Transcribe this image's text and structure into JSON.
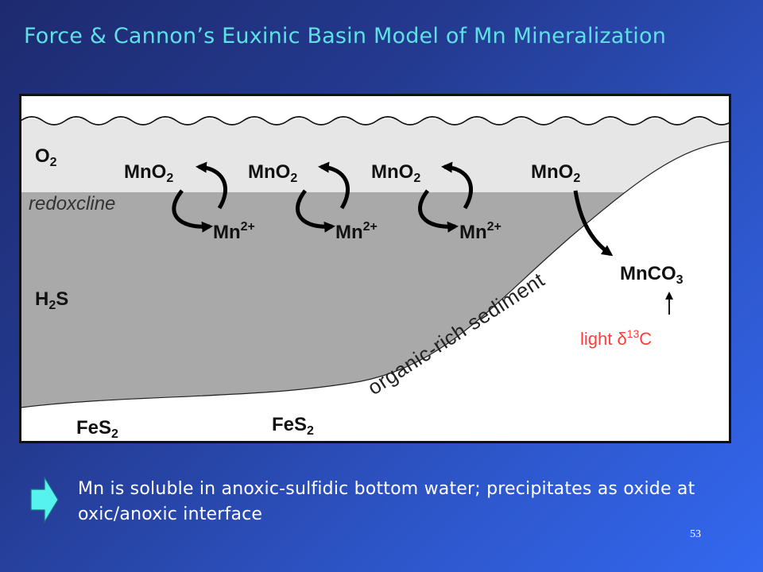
{
  "title": "Force & Cannon’s Euxinic Basin Model of Mn Mineralization",
  "diagram": {
    "o2_main": "O",
    "o2_sub": "2",
    "redoxcline": "redoxcline",
    "h2s_h": "H",
    "h2s_sub": "2",
    "h2s_s": "S",
    "mno2": [
      {
        "main": "MnO",
        "sub": "2"
      },
      {
        "main": "MnO",
        "sub": "2"
      },
      {
        "main": "MnO",
        "sub": "2"
      },
      {
        "main": "MnO",
        "sub": "2"
      }
    ],
    "mn2": [
      {
        "main": "Mn",
        "sup": "2+"
      },
      {
        "main": "Mn",
        "sup": "2+"
      },
      {
        "main": "Mn",
        "sup": "2+"
      }
    ],
    "mnco3_main": "MnCO",
    "mnco3_sub": "3",
    "sediment_label": "organic-rich sediment",
    "fes2": [
      {
        "main": "FeS",
        "sub": "2"
      },
      {
        "main": "FeS",
        "sub": "2"
      }
    ],
    "light_prefix": "light δ",
    "light_sup": "13",
    "light_suffix": "C"
  },
  "bullet_text": "Mn is soluble in anoxic-sulfidic bottom water; precipitates as oxide at oxic/anoxic interface",
  "page_number": "53",
  "colors": {
    "title": "#5fe0e6",
    "light_delta": "#ff3b3b",
    "bullet_arrow": "#55f2ee",
    "oxic_water": "#e6e6e6",
    "anoxic_water": "#a9a9a9",
    "sediment": "#ffffff"
  }
}
